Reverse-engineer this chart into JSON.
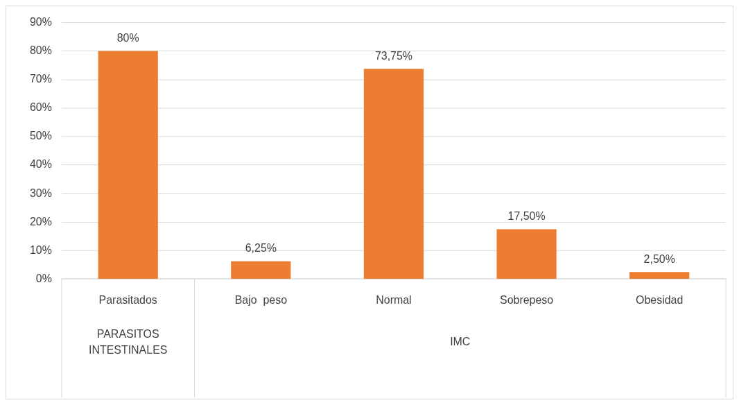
{
  "chart_data": {
    "type": "bar",
    "categories": [
      "Parasitados",
      "Bajo  peso",
      "Normal",
      "Sobrepeso",
      "Obesidad"
    ],
    "values": [
      80,
      6.25,
      73.75,
      17.5,
      2.5
    ],
    "value_labels": [
      "80%",
      "6,25%",
      "73,75%",
      "17,50%",
      "2,50%"
    ],
    "color": "#ed7d31",
    "ylim": [
      0,
      90
    ],
    "yticks": [
      {
        "value": 0,
        "label": "0%"
      },
      {
        "value": 10,
        "label": "10%"
      },
      {
        "value": 20,
        "label": "20%"
      },
      {
        "value": 30,
        "label": "30%"
      },
      {
        "value": 40,
        "label": "40%"
      },
      {
        "value": 50,
        "label": "50%"
      },
      {
        "value": 60,
        "label": "60%"
      },
      {
        "value": 70,
        "label": "70%"
      },
      {
        "value": 80,
        "label": "80%"
      },
      {
        "value": 90,
        "label": "90%"
      }
    ],
    "annotations": [
      "PARASITOS INTESTINALES",
      "IMC"
    ],
    "grid": "y",
    "legend": false
  }
}
